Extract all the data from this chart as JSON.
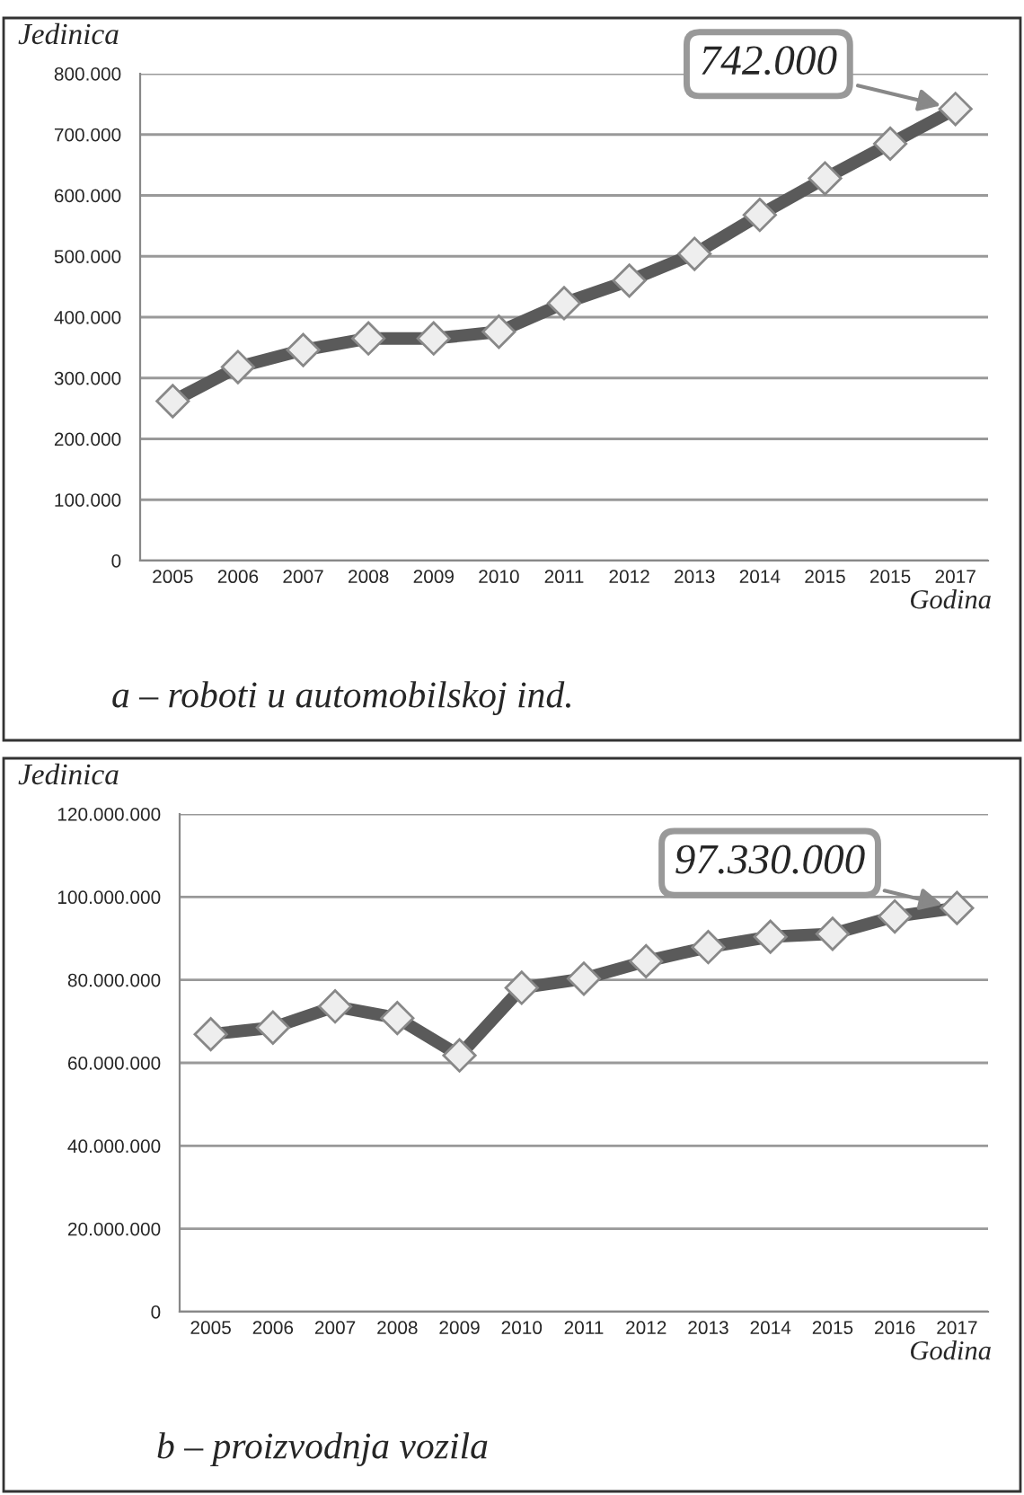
{
  "chart_data": [
    {
      "type": "line",
      "title": "a – roboti u automobilskoj ind.",
      "ylabel": "Jedinica",
      "xlabel": "Godina",
      "categories": [
        "2005",
        "2006",
        "2007",
        "2008",
        "2009",
        "2010",
        "2011",
        "2012",
        "2013",
        "2014",
        "2015",
        "2015",
        "2017"
      ],
      "series": [
        {
          "color": "#5a5a5a",
          "values": [
            262000,
            318000,
            346000,
            365000,
            365000,
            376000,
            423000,
            460000,
            504000,
            568000,
            628000,
            685000,
            742000
          ]
        }
      ],
      "ylim": [
        0,
        800000
      ],
      "yticks": [
        {
          "value": 0,
          "label": "0"
        },
        {
          "value": 100000,
          "label": "100.000"
        },
        {
          "value": 200000,
          "label": "200.000"
        },
        {
          "value": 300000,
          "label": "300.000"
        },
        {
          "value": 400000,
          "label": "400.000"
        },
        {
          "value": 500000,
          "label": "500.000"
        },
        {
          "value": 600000,
          "label": "600.000"
        },
        {
          "value": 700000,
          "label": "700.000"
        },
        {
          "value": 800000,
          "label": "800.000"
        }
      ],
      "annotations": [
        {
          "text": "742.000",
          "x": "2017",
          "y": 742000
        }
      ],
      "grid": "y",
      "marker": "diamond",
      "line_style": "solid",
      "legend": false
    },
    {
      "type": "line",
      "title": "b – proizvodnja vozila",
      "ylabel": "Jedinica",
      "xlabel": "Godina",
      "categories": [
        "2005",
        "2006",
        "2007",
        "2008",
        "2009",
        "2010",
        "2011",
        "2012",
        "2013",
        "2014",
        "2015",
        "2016",
        "2017"
      ],
      "series": [
        {
          "color": "#5a5a5a",
          "values": [
            66900000,
            68500000,
            73600000,
            70800000,
            61800000,
            78100000,
            80300000,
            84500000,
            87900000,
            90400000,
            91100000,
            95300000,
            97330000
          ]
        }
      ],
      "ylim": [
        0,
        120000000
      ],
      "yticks": [
        {
          "value": 0,
          "label": "0"
        },
        {
          "value": 20000000,
          "label": "20.000.000"
        },
        {
          "value": 40000000,
          "label": "40.000.000"
        },
        {
          "value": 60000000,
          "label": "60.000.000"
        },
        {
          "value": 80000000,
          "label": "80.000.000"
        },
        {
          "value": 100000000,
          "label": "100.000.000"
        },
        {
          "value": 120000000,
          "label": "120.000.000"
        }
      ],
      "annotations": [
        {
          "text": "97.330.000",
          "x": "2017",
          "y": 97330000
        }
      ],
      "grid": "y",
      "marker": "diamond",
      "line_style": "solid",
      "legend": false
    }
  ]
}
